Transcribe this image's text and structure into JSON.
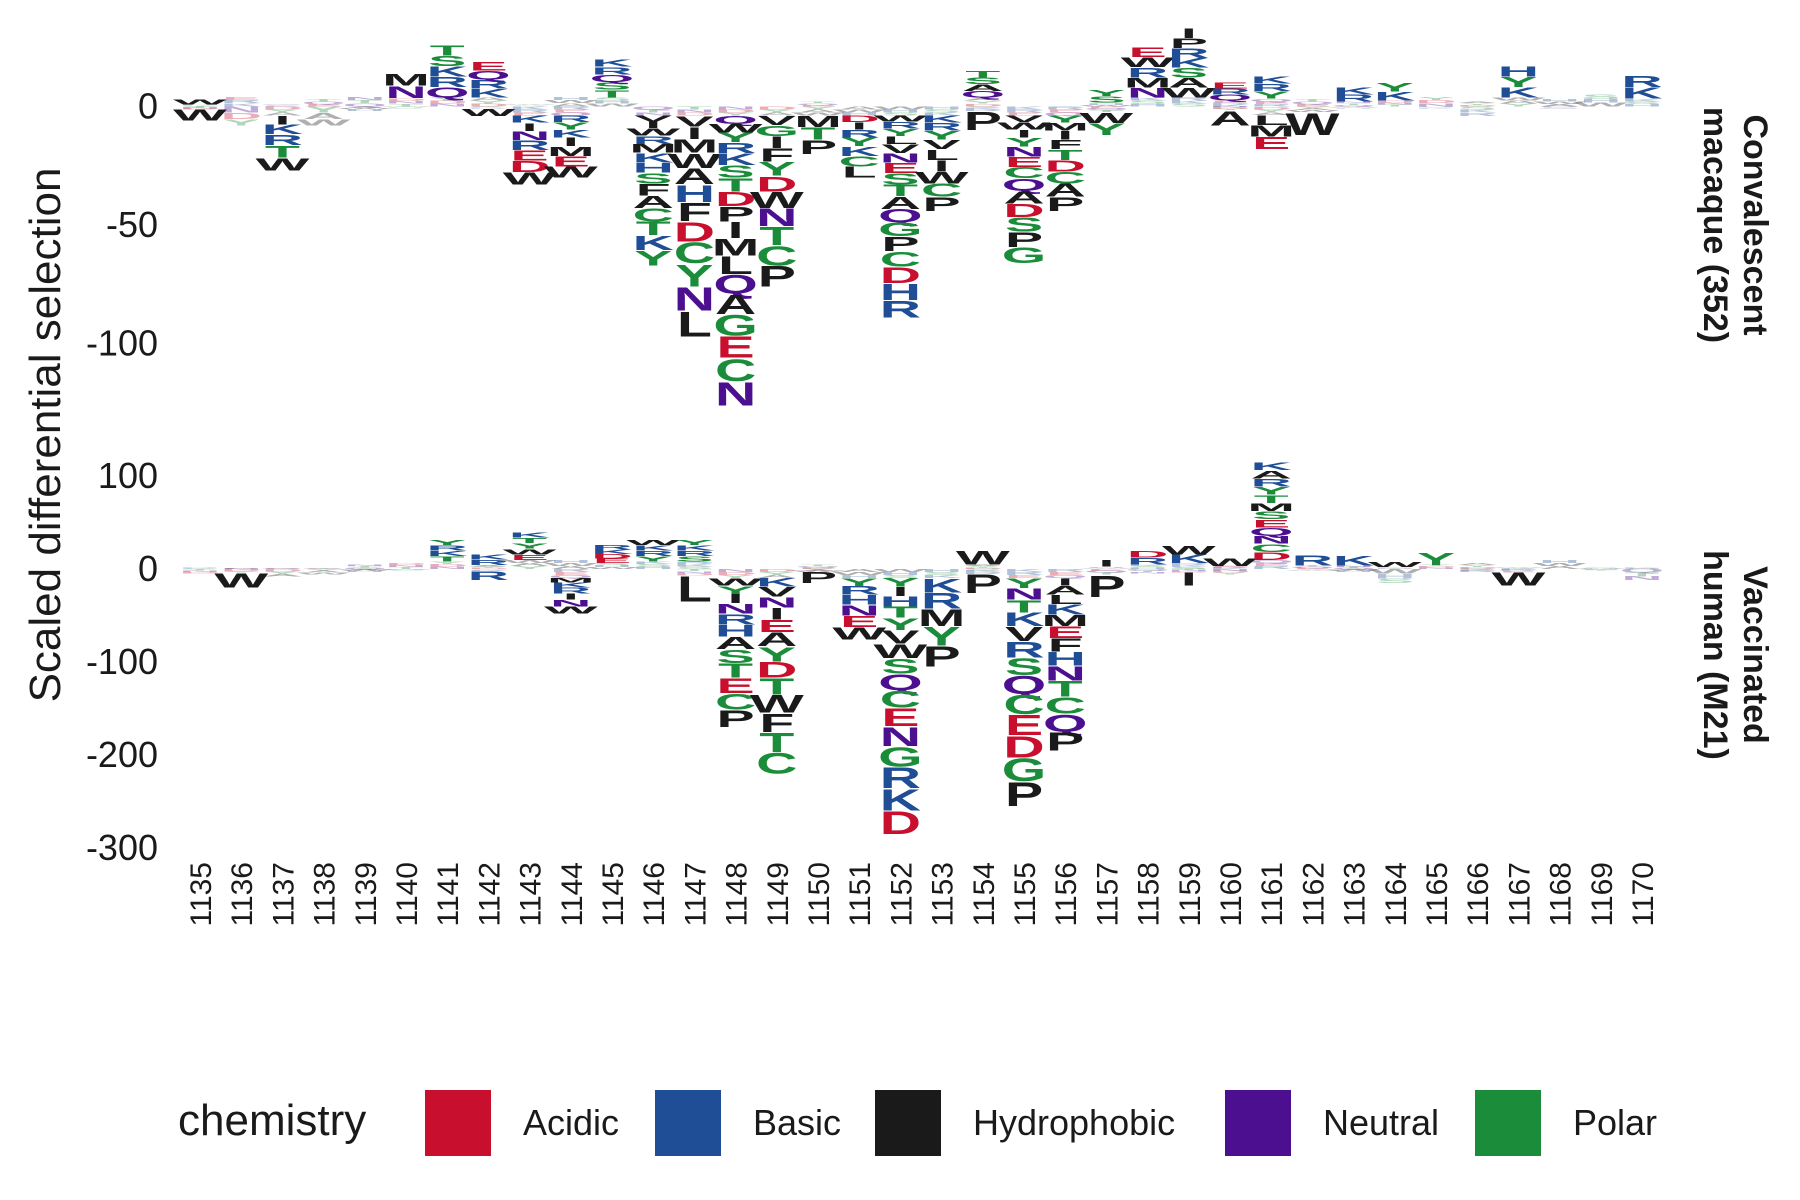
{
  "chart_data": {
    "type": "sequence-logo",
    "ylabel": "Scaled differential selection",
    "x_sites": [
      1135,
      1136,
      1137,
      1138,
      1139,
      1140,
      1141,
      1142,
      1143,
      1144,
      1145,
      1146,
      1147,
      1148,
      1149,
      1150,
      1151,
      1152,
      1153,
      1154,
      1155,
      1156,
      1157,
      1158,
      1159,
      1160,
      1161,
      1162,
      1163,
      1164,
      1165,
      1166,
      1167,
      1168,
      1169,
      1170
    ],
    "legend": {
      "title": "chemistry",
      "entries": [
        {
          "label": "Acidic",
          "color": "#c8102e"
        },
        {
          "label": "Basic",
          "color": "#1f4e96"
        },
        {
          "label": "Hydrophobic",
          "color": "#1a1a1a"
        },
        {
          "label": "Neutral",
          "color": "#4b0f8f"
        },
        {
          "label": "Polar",
          "color": "#1a8c3a"
        }
      ]
    },
    "panels": [
      {
        "strip_label": [
          "Convalescent",
          "macaque (352)"
        ],
        "ylim": [
          -128,
          28
        ],
        "yticks": [
          0,
          -50,
          -100
        ],
        "ytick_labels": [
          "0",
          "-50",
          "-100"
        ],
        "sites": [
          {
            "pos": 3,
            "neg": -6,
            "top": [
              "W"
            ],
            "bottom": [
              "W"
            ]
          },
          {
            "pos": 4,
            "neg": -8,
            "top": [],
            "bottom": []
          },
          {
            "pos": 1,
            "neg": -27,
            "top": [],
            "bottom": [
              "I",
              "K",
              "R",
              "T",
              "W"
            ]
          },
          {
            "pos": 3,
            "neg": -8,
            "top": [],
            "bottom": []
          },
          {
            "pos": 4,
            "neg": -2,
            "top": [],
            "bottom": []
          },
          {
            "pos": 14,
            "neg": -1,
            "top": [
              "M",
              "N"
            ],
            "bottom": []
          },
          {
            "pos": 26,
            "neg": 0,
            "top": [
              "T",
              "S",
              "K",
              "R",
              "Q"
            ],
            "bottom": []
          },
          {
            "pos": 19,
            "neg": -4,
            "top": [
              "E",
              "Q",
              "R",
              "K"
            ],
            "bottom": [
              "W"
            ]
          },
          {
            "pos": 1,
            "neg": -33,
            "top": [],
            "bottom": [
              "K",
              "I",
              "N",
              "R",
              "E",
              "D",
              "W"
            ]
          },
          {
            "pos": 4,
            "neg": -30,
            "top": [],
            "bottom": [
              "R",
              "Y",
              "K",
              "I",
              "M",
              "E",
              "W"
            ]
          },
          {
            "pos": 20,
            "neg": 0,
            "top": [
              "K",
              "R",
              "Q",
              "S",
              "T"
            ],
            "bottom": []
          },
          {
            "pos": 0,
            "neg": -67,
            "top": [],
            "bottom": [
              "V",
              "I",
              "W",
              "R",
              "M",
              "K",
              "H",
              "S",
              "F",
              "A",
              "C",
              "T",
              "K",
              "Y"
            ]
          },
          {
            "pos": 0,
            "neg": -97,
            "top": [],
            "bottom": [
              "V",
              "I",
              "M",
              "W",
              "A",
              "H",
              "F",
              "D",
              "C",
              "Y",
              "N",
              "L"
            ]
          },
          {
            "pos": 0,
            "neg": -126,
            "top": [],
            "bottom": [
              "Q",
              "W",
              "Y",
              "R",
              "K",
              "S",
              "T",
              "D",
              "P",
              "I",
              "M",
              "L",
              "Q",
              "A",
              "G",
              "E",
              "C",
              "N"
            ]
          },
          {
            "pos": 0,
            "neg": -76,
            "top": [],
            "bottom": [
              "V",
              "G",
              "I",
              "F",
              "Y",
              "D",
              "W",
              "N",
              "T",
              "C",
              "P"
            ]
          },
          {
            "pos": 2,
            "neg": -20,
            "top": [],
            "bottom": [
              "M",
              "T",
              "P"
            ]
          },
          {
            "pos": 0,
            "neg": -30,
            "top": [],
            "bottom": [
              "D",
              "I",
              "R",
              "Y",
              "K",
              "C",
              "L"
            ]
          },
          {
            "pos": 0,
            "neg": -89,
            "top": [],
            "bottom": [
              "W",
              "R",
              "Y",
              "L",
              "V",
              "N",
              "E",
              "S",
              "T",
              "A",
              "Q",
              "G",
              "P",
              "C",
              "D",
              "H",
              "R"
            ]
          },
          {
            "pos": 0,
            "neg": -44,
            "top": [],
            "bottom": [
              "K",
              "R",
              "Y",
              "V",
              "L",
              "I",
              "W",
              "C",
              "P"
            ]
          },
          {
            "pos": 15,
            "neg": -10,
            "top": [
              "T",
              "S",
              "A",
              "Q"
            ],
            "bottom": [
              "P"
            ]
          },
          {
            "pos": 0,
            "neg": -66,
            "top": [],
            "bottom": [
              "V",
              "W",
              "I",
              "Y",
              "N",
              "E",
              "C",
              "Q",
              "A",
              "D",
              "S",
              "P",
              "G"
            ]
          },
          {
            "pos": 0,
            "neg": -44,
            "top": [],
            "bottom": [
              "Y",
              "M",
              "I",
              "F",
              "T",
              "D",
              "C",
              "A",
              "P"
            ]
          },
          {
            "pos": 7,
            "neg": -12,
            "top": [
              "Y",
              "S"
            ],
            "bottom": [
              "W",
              "Y"
            ]
          },
          {
            "pos": 25,
            "neg": 0,
            "top": [
              "E",
              "W",
              "R",
              "M",
              "N"
            ],
            "bottom": []
          },
          {
            "pos": 33,
            "neg": 0,
            "top": [
              "I",
              "P",
              "R",
              "K",
              "S",
              "A",
              "W"
            ],
            "bottom": []
          },
          {
            "pos": 10,
            "neg": -8,
            "top": [
              "E",
              "R",
              "Q"
            ],
            "bottom": [
              "A"
            ]
          },
          {
            "pos": 13,
            "neg": -18,
            "top": [
              "K",
              "R",
              "Y"
            ],
            "bottom": [
              "L",
              "M",
              "E"
            ]
          },
          {
            "pos": 3,
            "neg": -12,
            "top": [],
            "bottom": [
              "W"
            ]
          },
          {
            "pos": 8,
            "neg": -1,
            "top": [
              "K",
              "R"
            ],
            "bottom": []
          },
          {
            "pos": 10,
            "neg": 0,
            "top": [
              "Y",
              "K"
            ],
            "bottom": []
          },
          {
            "pos": 4,
            "neg": -1,
            "top": [],
            "bottom": []
          },
          {
            "pos": 2,
            "neg": -4,
            "top": [],
            "bottom": []
          },
          {
            "pos": 17,
            "neg": 0,
            "top": [
              "H",
              "Y",
              "K"
            ],
            "bottom": []
          },
          {
            "pos": 3,
            "neg": -1,
            "top": [],
            "bottom": []
          },
          {
            "pos": 5,
            "neg": 0,
            "top": [],
            "bottom": []
          },
          {
            "pos": 13,
            "neg": 0,
            "top": [
              "R",
              "K"
            ],
            "bottom": []
          }
        ]
      },
      {
        "strip_label": [
          "Vaccinated",
          "human (M21)"
        ],
        "ylim": [
          -300,
          115
        ],
        "yticks": [
          100,
          0,
          -100,
          -200,
          -300
        ],
        "ytick_labels": [
          "100",
          "0",
          "-100",
          "-200",
          "-300"
        ],
        "sites": [
          {
            "pos": 2,
            "neg": -5,
            "top": [],
            "bottom": []
          },
          {
            "pos": 1,
            "neg": -20,
            "top": [],
            "bottom": [
              "W"
            ]
          },
          {
            "pos": 1,
            "neg": -8,
            "top": [],
            "bottom": []
          },
          {
            "pos": 1,
            "neg": -6,
            "top": [],
            "bottom": []
          },
          {
            "pos": 5,
            "neg": -3,
            "top": [],
            "bottom": []
          },
          {
            "pos": 6,
            "neg": -2,
            "top": [],
            "bottom": []
          },
          {
            "pos": 32,
            "neg": 0,
            "top": [
              "Y",
              "R",
              "K",
              "T"
            ],
            "bottom": []
          },
          {
            "pos": 16,
            "neg": -12,
            "top": [
              "K",
              "R"
            ],
            "bottom": [
              "R"
            ]
          },
          {
            "pos": 40,
            "neg": 0,
            "top": [
              "K",
              "T",
              "Y",
              "W",
              "E"
            ],
            "bottom": []
          },
          {
            "pos": 10,
            "neg": -48,
            "top": [],
            "bottom": [
              "M",
              "K",
              "R",
              "I",
              "N",
              "W"
            ]
          },
          {
            "pos": 26,
            "neg": 0,
            "top": [
              "R",
              "K",
              "D",
              "E"
            ],
            "bottom": []
          },
          {
            "pos": 32,
            "neg": 0,
            "top": [
              "W",
              "K",
              "R",
              "Y"
            ],
            "bottom": []
          },
          {
            "pos": 32,
            "neg": -35,
            "top": [
              "Y",
              "K",
              "R",
              "S"
            ],
            "bottom": [
              "L"
            ]
          },
          {
            "pos": 0,
            "neg": -170,
            "top": [],
            "bottom": [
              "W",
              "Y",
              "I",
              "N",
              "R",
              "H",
              "A",
              "S",
              "T",
              "E",
              "C",
              "P"
            ]
          },
          {
            "pos": 0,
            "neg": -220,
            "top": [],
            "bottom": [
              "K",
              "V",
              "N",
              "I",
              "E",
              "A",
              "Y",
              "D",
              "T",
              "W",
              "F",
              "T",
              "C"
            ]
          },
          {
            "pos": 5,
            "neg": -15,
            "top": [],
            "bottom": [
              "P"
            ]
          },
          {
            "pos": 0,
            "neg": -76,
            "top": [],
            "bottom": [
              "Y",
              "R",
              "H",
              "N",
              "E",
              "W"
            ]
          },
          {
            "pos": 0,
            "neg": -285,
            "top": [],
            "bottom": [
              "Y",
              "I",
              "H",
              "T",
              "Y",
              "V",
              "W",
              "S",
              "Q",
              "C",
              "E",
              "N",
              "G",
              "R",
              "K",
              "D"
            ]
          },
          {
            "pos": 0,
            "neg": -105,
            "top": [],
            "bottom": [
              "K",
              "R",
              "M",
              "Y",
              "P"
            ]
          },
          {
            "pos": 20,
            "neg": -26,
            "top": [
              "W"
            ],
            "bottom": [
              "P"
            ]
          },
          {
            "pos": 0,
            "neg": -255,
            "top": [],
            "bottom": [
              "Y",
              "N",
              "T",
              "K",
              "V",
              "R",
              "S",
              "Q",
              "C",
              "E",
              "D",
              "G",
              "P"
            ]
          },
          {
            "pos": 0,
            "neg": -195,
            "top": [],
            "bottom": [
              "I",
              "A",
              "L",
              "K",
              "M",
              "E",
              "F",
              "H",
              "N",
              "T",
              "C",
              "Q",
              "P"
            ]
          },
          {
            "pos": 10,
            "neg": -30,
            "top": [
              "I"
            ],
            "bottom": [
              "P"
            ]
          },
          {
            "pos": 20,
            "neg": -5,
            "top": [
              "D",
              "R"
            ],
            "bottom": []
          },
          {
            "pos": 25,
            "neg": -18,
            "top": [
              "W",
              "K"
            ],
            "bottom": [
              "I"
            ]
          },
          {
            "pos": 12,
            "neg": -6,
            "top": [
              "W"
            ],
            "bottom": []
          },
          {
            "pos": 115,
            "neg": 0,
            "top": [
              "K",
              "A",
              "R",
              "Y",
              "T",
              "M",
              "S",
              "E",
              "Q",
              "N",
              "C",
              "D"
            ],
            "bottom": []
          },
          {
            "pos": 15,
            "neg": -2,
            "top": [
              "R"
            ],
            "bottom": []
          },
          {
            "pos": 14,
            "neg": -3,
            "top": [
              "K"
            ],
            "bottom": []
          },
          {
            "pos": 8,
            "neg": -15,
            "top": [
              "W"
            ],
            "bottom": []
          },
          {
            "pos": 18,
            "neg": 0,
            "top": [
              "Y"
            ],
            "bottom": []
          },
          {
            "pos": 6,
            "neg": -3,
            "top": [],
            "bottom": []
          },
          {
            "pos": 2,
            "neg": -18,
            "top": [],
            "bottom": [
              "W"
            ]
          },
          {
            "pos": 10,
            "neg": 0,
            "top": [],
            "bottom": []
          },
          {
            "pos": 2,
            "neg": -2,
            "top": [],
            "bottom": []
          },
          {
            "pos": 2,
            "neg": -12,
            "top": [],
            "bottom": []
          }
        ]
      }
    ]
  },
  "aa_chemistry": {
    "Acidic": [
      "D",
      "E"
    ],
    "Basic": [
      "H",
      "K",
      "R"
    ],
    "Hydrophobic": [
      "A",
      "F",
      "I",
      "L",
      "M",
      "P",
      "V",
      "W"
    ],
    "Neutral": [
      "N",
      "Q"
    ],
    "Polar": [
      "C",
      "G",
      "S",
      "T",
      "Y"
    ]
  }
}
